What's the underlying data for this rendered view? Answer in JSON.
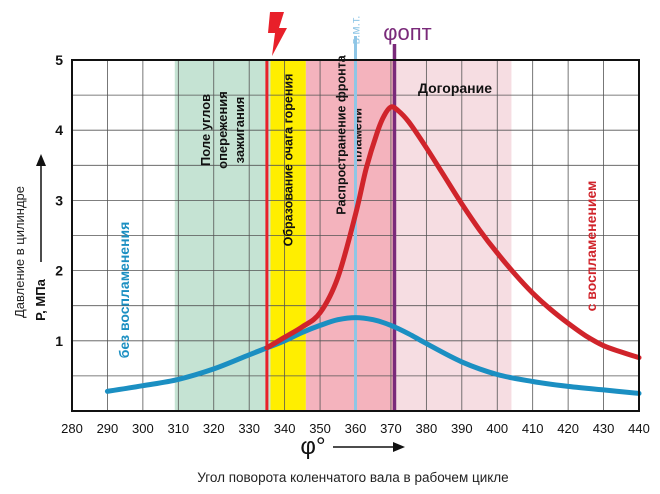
{
  "chart_data": {
    "type": "line",
    "xlabel_symbol": "φ°",
    "xlabel": "Угол поворота коленчатого вала в рабочем цикле",
    "ylabel_line1": "Давление в цилиндре",
    "ylabel_line2": "P, МПа",
    "xlim": [
      280,
      440
    ],
    "ylim": [
      0,
      5
    ],
    "x_ticks": [
      280,
      290,
      300,
      310,
      320,
      330,
      340,
      350,
      360,
      370,
      380,
      390,
      400,
      410,
      420,
      430,
      440
    ],
    "y_ticks": [
      1,
      2,
      3,
      4,
      5
    ],
    "grid": true,
    "zones": [
      {
        "x0": 309,
        "x1": 336,
        "color": "#c5e3d3",
        "label": "Поле углов опережения зажигания"
      },
      {
        "x0": 336,
        "x1": 346,
        "color": "#ffee00",
        "label": "Образование очага горения"
      },
      {
        "x0": 346,
        "x1": 371,
        "color": "#f4b3bd",
        "label": "Распространение фронта пламени"
      },
      {
        "x0": 371,
        "x1": 404,
        "color": "#f6dde2",
        "label": "Догорание"
      }
    ],
    "markers": [
      {
        "x": 335,
        "color": "#e8202a",
        "label": "ϟ"
      },
      {
        "x": 360,
        "color": "#8fc6e6",
        "label": "в.м.т."
      },
      {
        "x": 371,
        "color": "#7a2a7a",
        "label": "φопт"
      }
    ],
    "series": [
      {
        "name": "с воспламенением",
        "color": "#d0242b",
        "x": [
          335,
          340,
          345,
          350,
          355,
          360,
          363,
          366,
          368,
          370,
          372,
          375,
          380,
          385,
          390,
          395,
          400,
          405,
          410,
          415,
          420,
          425,
          430,
          435,
          440
        ],
        "y": [
          0.9,
          1.05,
          1.2,
          1.4,
          1.9,
          2.8,
          3.45,
          3.95,
          4.2,
          4.33,
          4.28,
          4.12,
          3.75,
          3.35,
          2.95,
          2.58,
          2.25,
          1.95,
          1.68,
          1.45,
          1.25,
          1.07,
          0.93,
          0.84,
          0.76
        ]
      },
      {
        "name": "без воспламенения",
        "color": "#1b8fc2",
        "x": [
          290,
          300,
          310,
          320,
          330,
          335,
          340,
          345,
          350,
          355,
          360,
          365,
          370,
          375,
          380,
          390,
          400,
          410,
          420,
          430,
          440
        ],
        "y": [
          0.28,
          0.36,
          0.45,
          0.6,
          0.8,
          0.9,
          1.0,
          1.12,
          1.22,
          1.3,
          1.33,
          1.3,
          1.22,
          1.1,
          0.96,
          0.7,
          0.52,
          0.42,
          0.35,
          0.3,
          0.25
        ]
      }
    ],
    "series_label_texts": [
      "с воспламенением",
      "без воспламенения"
    ]
  }
}
